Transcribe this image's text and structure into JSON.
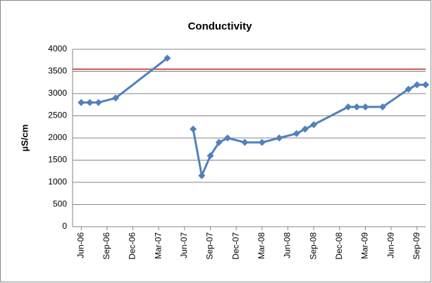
{
  "chart_data": {
    "type": "line",
    "title": "Conductivity",
    "y_label": "µS/cm",
    "x": [
      "2006-06",
      "2006-07",
      "2006-08",
      "2006-10",
      "2007-04",
      "2007-05",
      "2007-07",
      "2007-08",
      "2007-09",
      "2007-10",
      "2007-11",
      "2008-01",
      "2008-03",
      "2008-05",
      "2008-07",
      "2008-08",
      "2008-09",
      "2009-01",
      "2009-02",
      "2009-03",
      "2009-05",
      "2009-08",
      "2009-09",
      "2009-10"
    ],
    "series": [
      {
        "name": "Conductivity",
        "color": "#4f81bd",
        "values": [
          2800,
          2800,
          2800,
          2900,
          3800,
          null,
          2200,
          1150,
          1600,
          1900,
          2000,
          1900,
          1900,
          2000,
          2100,
          2200,
          2300,
          2700,
          2700,
          2700,
          2700,
          3100,
          3200,
          3200
        ]
      }
    ],
    "reference_line": {
      "value": 3550,
      "color": "#c0504d"
    },
    "xlim": [
      "2006-05",
      "2009-10"
    ],
    "xticks": [
      {
        "value": "2006-06",
        "label": "Jun-06"
      },
      {
        "value": "2006-09",
        "label": "Sep-06"
      },
      {
        "value": "2006-12",
        "label": "Dec-06"
      },
      {
        "value": "2007-03",
        "label": "Mar-07"
      },
      {
        "value": "2007-06",
        "label": "Jun-07"
      },
      {
        "value": "2007-09",
        "label": "Sep-07"
      },
      {
        "value": "2007-12",
        "label": "Dec-07"
      },
      {
        "value": "2008-03",
        "label": "Mar-08"
      },
      {
        "value": "2008-06",
        "label": "Jun-08"
      },
      {
        "value": "2008-09",
        "label": "Sep-08"
      },
      {
        "value": "2008-12",
        "label": "Dec-08"
      },
      {
        "value": "2009-03",
        "label": "Mar-09"
      },
      {
        "value": "2009-06",
        "label": "Jun-09"
      },
      {
        "value": "2009-09",
        "label": "Sep-09"
      }
    ],
    "ylim": [
      0,
      4000
    ],
    "yticks": [
      0,
      500,
      1000,
      1500,
      2000,
      2500,
      3000,
      3500,
      4000
    ],
    "grid": true
  }
}
